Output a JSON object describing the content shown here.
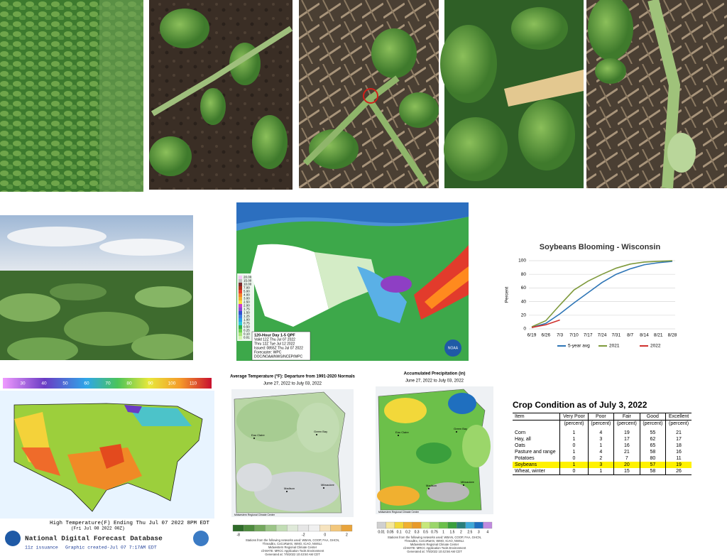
{
  "precip_forecast": {
    "legend": [
      "20.00",
      "15.00",
      "10.00",
      "7.00",
      "5.00",
      "4.00",
      "3.00",
      "2.50",
      "2.00",
      "1.75",
      "1.50",
      "1.25",
      "1.00",
      "0.75",
      "0.50",
      "0.25",
      "0.10",
      "0.01"
    ],
    "info": [
      "120-Hour Day 1-5 QPF",
      "Valid 12Z Thu Jul 07 2022",
      "Thru 12Z Tue Jul 12 2022",
      "Issued: 0855Z Thu Jul 07 2022",
      "Forecaster: WPC",
      "DOC/NOAA/NWS/NCEP/WPC"
    ],
    "logo": "NOAA"
  },
  "chart_data": {
    "type": "line",
    "title": "Soybeans Blooming - Wisconsin",
    "y_label": "Percent",
    "categories": [
      "6/19",
      "6/26",
      "7/3",
      "7/10",
      "7/17",
      "7/24",
      "7/31",
      "8/7",
      "8/14",
      "8/21",
      "8/28"
    ],
    "series": [
      {
        "name": "5-year avg",
        "color": "#2e75b6",
        "values": [
          2,
          8,
          22,
          38,
          53,
          68,
          80,
          88,
          94,
          97,
          99
        ]
      },
      {
        "name": "2021",
        "color": "#7f9a3c",
        "values": [
          3,
          12,
          35,
          57,
          70,
          80,
          89,
          95,
          98,
          99,
          100
        ]
      },
      {
        "name": "2022",
        "color": "#d0312d",
        "values": [
          2,
          6,
          13,
          null,
          null,
          null,
          null,
          null,
          null,
          null,
          null
        ]
      }
    ],
    "ylim": [
      0,
      100
    ],
    "yticks": [
      0,
      20,
      40,
      60,
      80,
      100
    ],
    "grid": true,
    "legend": "bottom"
  },
  "temp_forecast": {
    "legend": [
      30,
      40,
      50,
      60,
      70,
      80,
      90,
      100,
      110
    ],
    "caption": "High Temperature(F) Ending Thu Jul 07 2022  8PM EDT",
    "subcaption": "(Fri Jul 08 2022 00Z)",
    "product": "National Digital Forecast Database",
    "issuance": "11z issuance",
    "created": "Graphic created-Jul 07  7:17AM EDT"
  },
  "avg_temp": {
    "title": "Average Temperature (°F): Departure from 1991-2020 Normals",
    "dates": "June 27, 2022 to July 03, 2022",
    "cities": [
      "Eau Claire",
      "Green Bay",
      "Madison",
      "Milwaukee"
    ],
    "credit": "Midwestern Regional Climate Center",
    "legend": [
      "-8",
      "-2",
      "0",
      "2"
    ],
    "footer": [
      "Stations from the following networks used: WBAN, COOP, FAA, GHCN,",
      "ThreadEx, CoCoRaHS, WMO, ICAO, NWSLI.",
      "Midwestern Regional Climate Center",
      "cli-MATE: MRCC Application Tools Environment",
      "Generated at: 7/5/2022 10:43:50 AM CDT"
    ]
  },
  "accum_precip": {
    "title": "Accumulated Precipitation (in)",
    "dates": "June 27, 2022 to July 03, 2022",
    "cities": [
      "Eau Claire",
      "Green Bay",
      "Madison",
      "Milwaukee"
    ],
    "credit": "Midwestern Regional Climate Center",
    "legend": [
      "0.01",
      "0.05",
      "0.1",
      "0.2",
      "0.3",
      "0.5",
      "0.75",
      "1",
      "1.5",
      "2",
      "2.5",
      "3",
      "4"
    ],
    "footer": [
      "Stations from the following networks used: WBAN, COOP, FAA, GHCN,",
      "ThreadEx, CoCoRaHS, WMO, ICAO, NWSLI.",
      "Midwestern Regional Climate Center",
      "cli-MATE: MRCC Application Tools Environment",
      "Generated at: 7/5/2022 10:42:56 AM CDT"
    ]
  },
  "table": {
    "title": "Crop Condition as of July 3, 2022",
    "header": [
      "Item",
      "Very Poor",
      "Poor",
      "Fair",
      "Good",
      "Excellent"
    ],
    "units": [
      "(percent)",
      "(percent)",
      "(percent)",
      "(percent)",
      "(percent)"
    ],
    "rows": [
      [
        "Corn",
        1,
        4,
        19,
        55,
        21
      ],
      [
        "Hay, all",
        1,
        3,
        17,
        62,
        17
      ],
      [
        "Oats",
        0,
        1,
        16,
        65,
        18
      ],
      [
        "Pasture and range",
        1,
        4,
        21,
        58,
        16
      ],
      [
        "Potatoes",
        0,
        2,
        7,
        80,
        11
      ],
      [
        "Soybeans",
        1,
        3,
        20,
        57,
        19
      ],
      [
        "Wheat, winter",
        0,
        1,
        15,
        58,
        26
      ]
    ],
    "highlight": "Soybeans"
  }
}
